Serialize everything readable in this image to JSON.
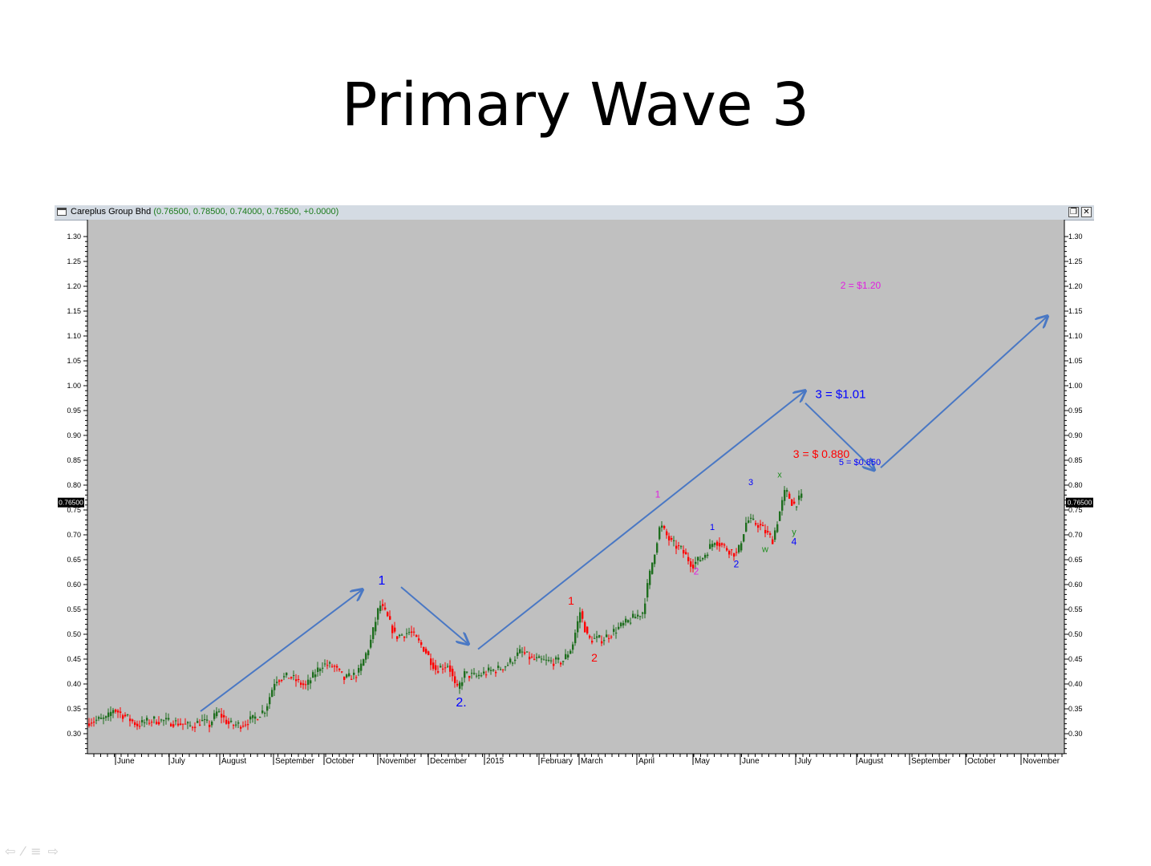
{
  "slide": {
    "title": "Primary Wave 3"
  },
  "window": {
    "symbol": "Careplus Group Bhd",
    "quote": "(0.76500, 0.78500, 0.74000, 0.76500, +0.0000)",
    "restore_icon": "restore-icon",
    "close_icon": "close-icon"
  },
  "chart_data": {
    "type": "candlestick",
    "title": "",
    "ylim": [
      0.26,
      1.33
    ],
    "y_ticks": [
      "1.30",
      "1.25",
      "1.20",
      "1.15",
      "1.10",
      "1.05",
      "1.00",
      "0.95",
      "0.90",
      "0.85",
      "0.80",
      "0.75",
      "0.70",
      "0.65",
      "0.60",
      "0.55",
      "0.50",
      "0.45",
      "0.40",
      "0.35",
      "0.30"
    ],
    "last_price_label": "0.76500",
    "last_price": 0.765,
    "x_labels": [
      "June",
      "July",
      "August",
      "September",
      "October",
      "November",
      "December",
      "2015",
      "February",
      "March",
      "April",
      "May",
      "June",
      "July",
      "August",
      "September",
      "October",
      "November"
    ],
    "up_color": "#1e6e1e",
    "down_color": "#ff0000",
    "background_color": "#c0c0c0",
    "price_path": [
      [
        0,
        0.325
      ],
      [
        22,
        0.33
      ],
      [
        30,
        0.35
      ],
      [
        45,
        0.335
      ],
      [
        60,
        0.318
      ],
      [
        80,
        0.328
      ],
      [
        110,
        0.322
      ],
      [
        125,
        0.315
      ],
      [
        140,
        0.325
      ],
      [
        150,
        0.318
      ],
      [
        160,
        0.345
      ],
      [
        175,
        0.318
      ],
      [
        188,
        0.318
      ],
      [
        205,
        0.33
      ],
      [
        220,
        0.35
      ],
      [
        232,
        0.41
      ],
      [
        250,
        0.415
      ],
      [
        270,
        0.395
      ],
      [
        290,
        0.44
      ],
      [
        305,
        0.435
      ],
      [
        318,
        0.41
      ],
      [
        335,
        0.42
      ],
      [
        350,
        0.48
      ],
      [
        362,
        0.56
      ],
      [
        370,
        0.54
      ],
      [
        382,
        0.495
      ],
      [
        400,
        0.505
      ],
      [
        418,
        0.47
      ],
      [
        432,
        0.43
      ],
      [
        448,
        0.44
      ],
      [
        458,
        0.385
      ],
      [
        468,
        0.42
      ],
      [
        482,
        0.415
      ],
      [
        498,
        0.425
      ],
      [
        510,
        0.43
      ],
      [
        522,
        0.44
      ],
      [
        538,
        0.465
      ],
      [
        552,
        0.45
      ],
      [
        570,
        0.445
      ],
      [
        590,
        0.445
      ],
      [
        602,
        0.475
      ],
      [
        612,
        0.545
      ],
      [
        622,
        0.49
      ],
      [
        640,
        0.49
      ],
      [
        662,
        0.515
      ],
      [
        690,
        0.545
      ],
      [
        700,
        0.63
      ],
      [
        712,
        0.72
      ],
      [
        725,
        0.685
      ],
      [
        738,
        0.67
      ],
      [
        752,
        0.64
      ],
      [
        765,
        0.655
      ],
      [
        780,
        0.69
      ],
      [
        792,
        0.675
      ],
      [
        808,
        0.66
      ],
      [
        820,
        0.73
      ],
      [
        835,
        0.72
      ],
      [
        852,
        0.69
      ],
      [
        868,
        0.79
      ],
      [
        878,
        0.76
      ],
      [
        888,
        0.775
      ]
    ],
    "arrows": [
      {
        "from": [
          250,
          0.345
        ],
        "to": [
          452,
          0.59
        ]
      },
      {
        "from": [
          500,
          0.595
        ],
        "to": [
          584,
          0.48
        ]
      },
      {
        "from": [
          596,
          0.47
        ],
        "to": [
          1004,
          0.99
        ]
      },
      {
        "from": [
          1004,
          0.965
        ],
        "to": [
          1090,
          0.83
        ]
      },
      {
        "from": [
          1098,
          0.835
        ],
        "to": [
          1306,
          1.14
        ]
      }
    ],
    "annotations": [
      {
        "text": "1",
        "x": 476,
        "y": 0.6,
        "color": "#0000ff",
        "size": 16
      },
      {
        "text": "2.",
        "x": 575,
        "y": 0.355,
        "color": "#0000ff",
        "size": 16
      },
      {
        "text": "1",
        "x": 712,
        "y": 0.56,
        "color": "#ff0000",
        "size": 14
      },
      {
        "text": "2",
        "x": 741,
        "y": 0.445,
        "color": "#ff0000",
        "size": 14
      },
      {
        "text": "1",
        "x": 820,
        "y": 0.775,
        "color": "#e020e0",
        "size": 12
      },
      {
        "text": "2",
        "x": 868,
        "y": 0.62,
        "color": "#e020e0",
        "size": 12
      },
      {
        "text": "1",
        "x": 888,
        "y": 0.71,
        "color": "#0000ff",
        "size": 11
      },
      {
        "text": "2",
        "x": 918,
        "y": 0.635,
        "color": "#0000ff",
        "size": 12
      },
      {
        "text": "3",
        "x": 936,
        "y": 0.8,
        "color": "#0000ff",
        "size": 11
      },
      {
        "text": "x",
        "x": 972,
        "y": 0.815,
        "color": "#1e8e1e",
        "size": 11
      },
      {
        "text": "w",
        "x": 954,
        "y": 0.665,
        "color": "#1e8e1e",
        "size": 11
      },
      {
        "text": "y",
        "x": 990,
        "y": 0.7,
        "color": "#1e8e1e",
        "size": 11
      },
      {
        "text": "4",
        "x": 990,
        "y": 0.68,
        "color": "#0000ff",
        "size": 12
      },
      {
        "text": "3 = $1.01",
        "x": 1048,
        "y": 0.975,
        "color": "#0000ff",
        "size": 15
      },
      {
        "text": "3 = $ 0.880",
        "x": 1024,
        "y": 0.855,
        "color": "#ff0000",
        "size": 14
      },
      {
        "text": "5 = $0.850",
        "x": 1072,
        "y": 0.84,
        "color": "#0000ff",
        "size": 11
      },
      {
        "text": "2 = $1.20",
        "x": 1073,
        "y": 1.195,
        "color": "#e020e0",
        "size": 12
      }
    ]
  },
  "nav": {
    "back": "⇦",
    "pen": "⁄",
    "menu": "≡",
    "forward": "⇨"
  }
}
